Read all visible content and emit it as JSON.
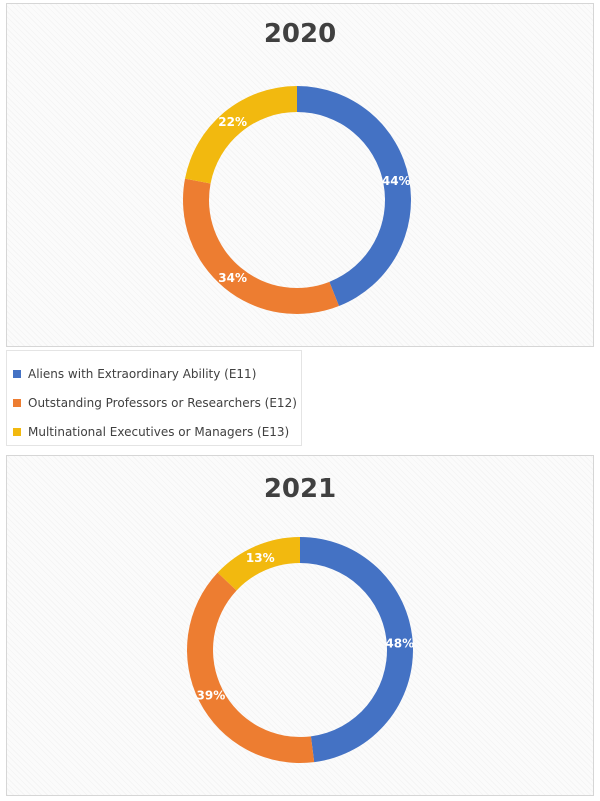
{
  "chart_data": [
    {
      "type": "pie",
      "title": "2020",
      "categories": [
        "Aliens with Extraordinary Ability (E11)",
        "Outstanding Professors or Researchers (E12)",
        "Multinational Executives or Managers (E13)"
      ],
      "values": [
        44,
        34,
        22
      ],
      "labels": [
        "44%",
        "34%",
        "22%"
      ],
      "colors": [
        "#4472c4",
        "#ed7d31",
        "#f2b90f"
      ]
    },
    {
      "type": "pie",
      "title": "2021",
      "categories": [
        "Aliens with Extraordinary Ability (E11)",
        "Outstanding Professors or Researchers (E12)",
        "Multinational Executives or Managers (E13)"
      ],
      "values": [
        48,
        39,
        13
      ],
      "labels": [
        "48%",
        "39%",
        "13%"
      ],
      "colors": [
        "#4472c4",
        "#ed7d31",
        "#f2b90f"
      ]
    }
  ],
  "legend": {
    "placement": "between-charts",
    "items": [
      {
        "label": "Aliens with Extraordinary Ability (E11)",
        "color": "#4472c4"
      },
      {
        "label": "Outstanding Professors or Researchers (E12)",
        "color": "#ed7d31"
      },
      {
        "label": "Multinational Executives or Managers (E13)",
        "color": "#f2b90f"
      }
    ]
  }
}
